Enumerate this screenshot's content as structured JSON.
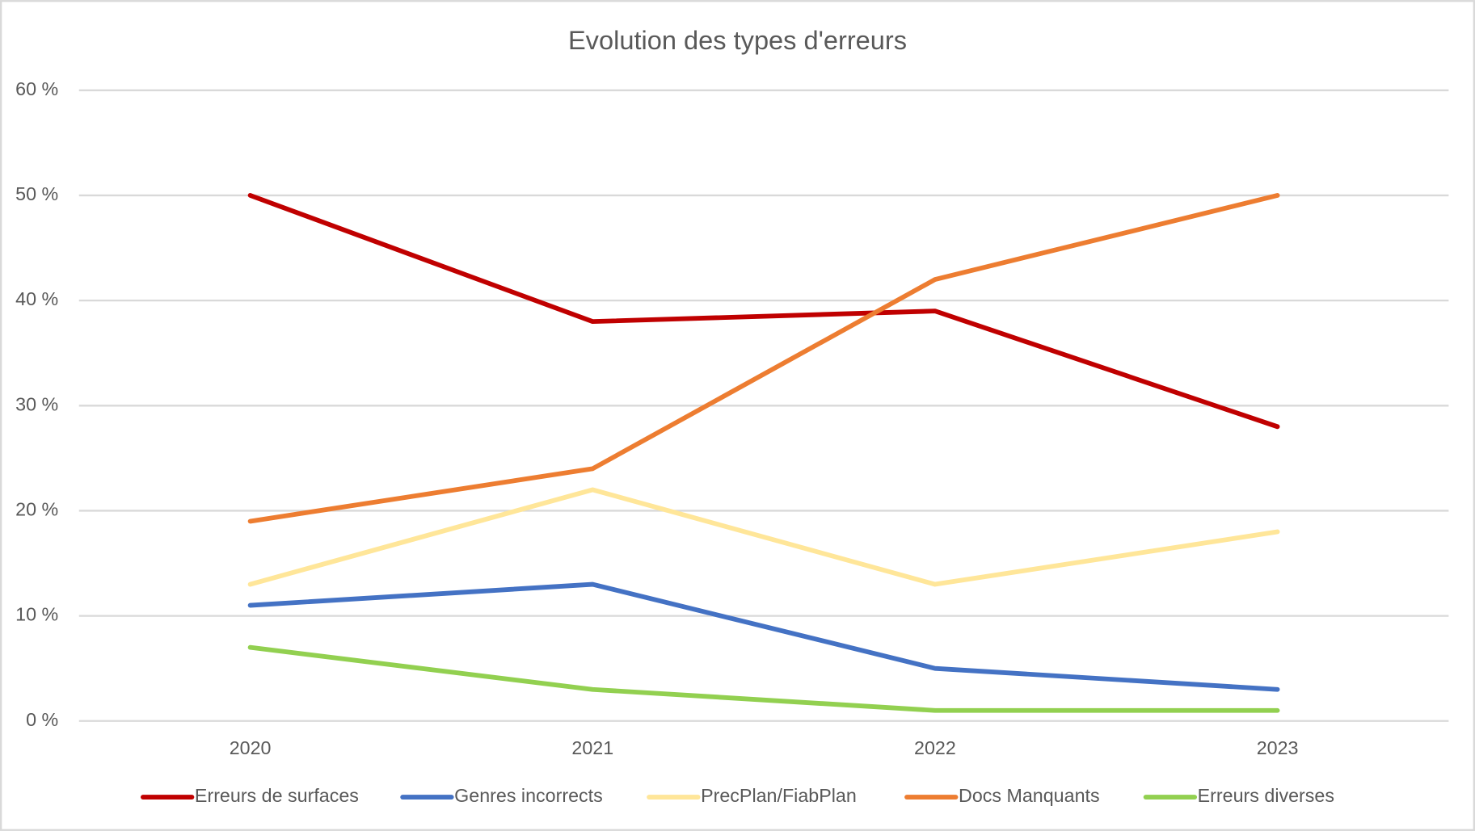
{
  "chart_data": {
    "type": "line",
    "title": "Evolution des types d'erreurs",
    "categories": [
      "2020",
      "2021",
      "2022",
      "2023"
    ],
    "series": [
      {
        "name": "Erreurs de surfaces",
        "color": "#c00000",
        "values": [
          50,
          38,
          39,
          28
        ]
      },
      {
        "name": "Genres incorrects",
        "color": "#4472c4",
        "values": [
          11,
          13,
          5,
          3
        ]
      },
      {
        "name": "PrecPlan/FiabPlan",
        "color": "#ffe699",
        "values": [
          13,
          22,
          13,
          18
        ]
      },
      {
        "name": "Docs Manquants",
        "color": "#ed7d31",
        "values": [
          19,
          24,
          42,
          50
        ]
      },
      {
        "name": "Erreurs diverses",
        "color": "#92d050",
        "values": [
          7,
          3,
          1,
          1
        ]
      }
    ],
    "ylim": [
      0,
      60
    ],
    "yticks": [
      {
        "value": 0,
        "label": "0 %"
      },
      {
        "value": 10,
        "label": "10 %"
      },
      {
        "value": 20,
        "label": "20 %"
      },
      {
        "value": 30,
        "label": "30 %"
      },
      {
        "value": 40,
        "label": "40 %"
      },
      {
        "value": 50,
        "label": "50 %"
      },
      {
        "value": 60,
        "label": "60 %"
      }
    ],
    "grid": true,
    "legend": "bottom"
  }
}
